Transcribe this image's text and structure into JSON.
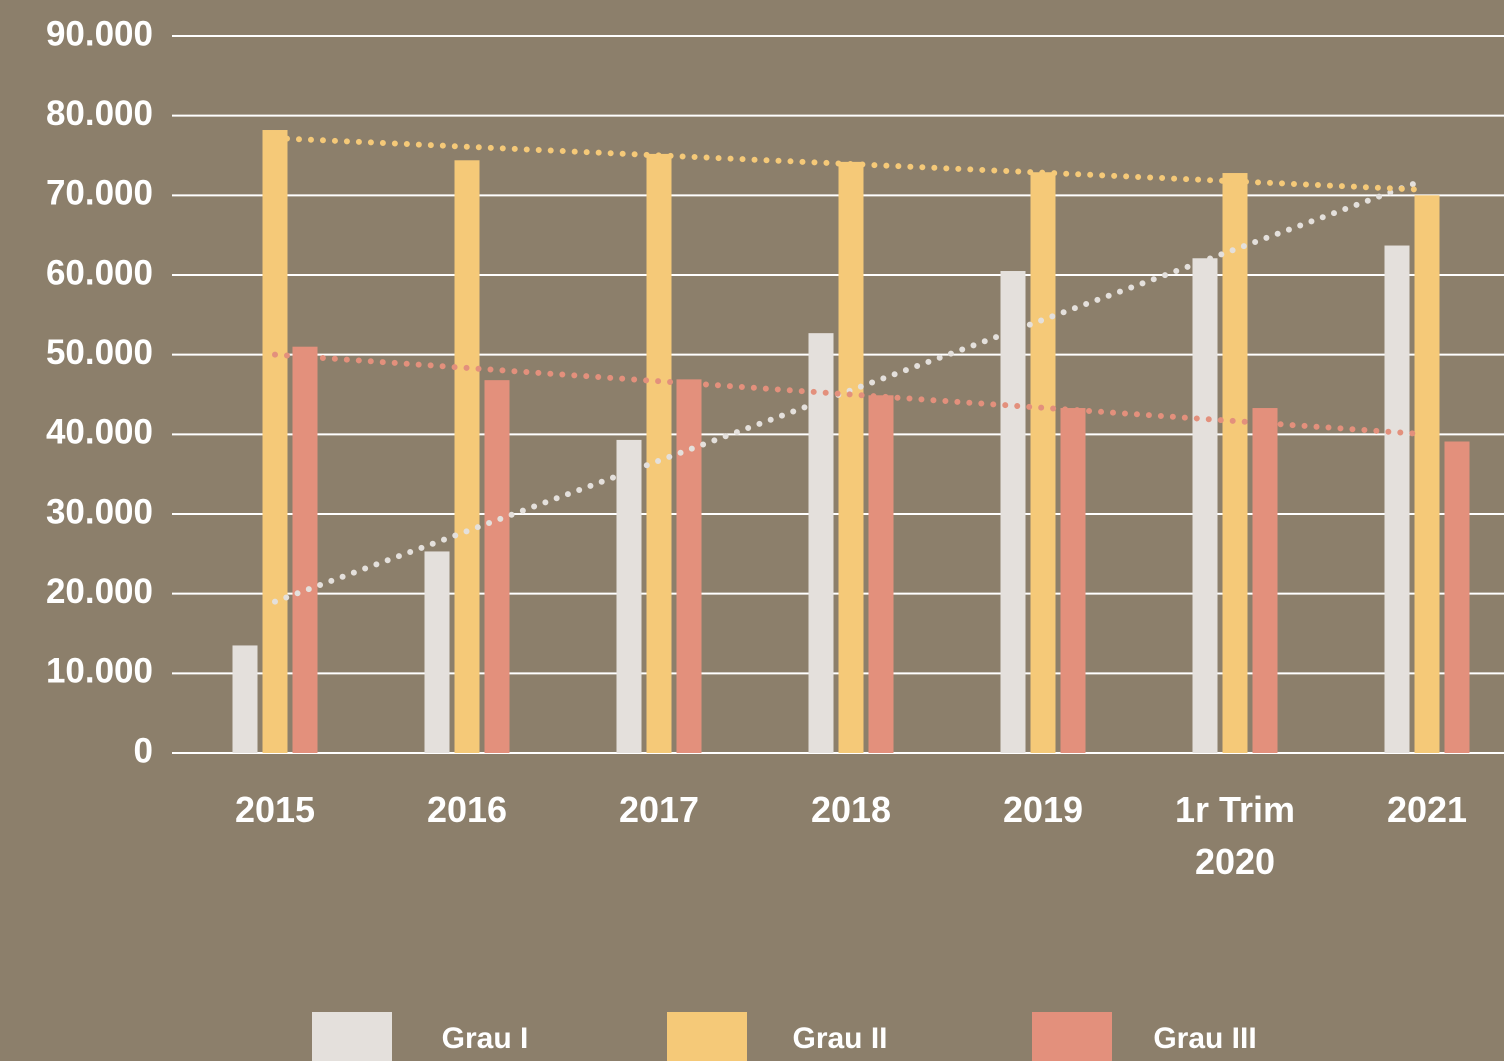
{
  "chart_data": {
    "type": "bar",
    "categories": [
      "2015",
      "2016",
      "2017",
      "2018",
      "2019",
      "1r Trim 2020",
      "2021"
    ],
    "series": [
      {
        "name": "Grau I",
        "color": "#e4e0dc",
        "values": [
          13500,
          25300,
          39300,
          52700,
          60500,
          62100,
          63700
        ]
      },
      {
        "name": "Grau II",
        "color": "#f5c978",
        "values": [
          78200,
          74400,
          75200,
          74200,
          72900,
          72800,
          70000
        ]
      },
      {
        "name": "Grau III",
        "color": "#e3907c",
        "values": [
          51000,
          46800,
          46900,
          44900,
          43300,
          43300,
          39100
        ]
      }
    ],
    "ylim": [
      0,
      90000
    ],
    "yticks": [
      0,
      {
        "value": 10000,
        "label": "10.000"
      },
      {
        "value": 20000,
        "label": "20.000"
      },
      {
        "value": 30000,
        "label": "30.000"
      },
      {
        "value": 40000,
        "label": "40.000"
      },
      {
        "value": 50000,
        "label": "50.000"
      },
      {
        "value": 60000,
        "label": "60.000"
      },
      {
        "value": 70000,
        "label": "70.000"
      },
      {
        "value": 80000,
        "label": "80.000"
      },
      {
        "value": 90000,
        "label": "90.000"
      }
    ],
    "grid": true,
    "trendline": true,
    "legend": "bottom"
  }
}
